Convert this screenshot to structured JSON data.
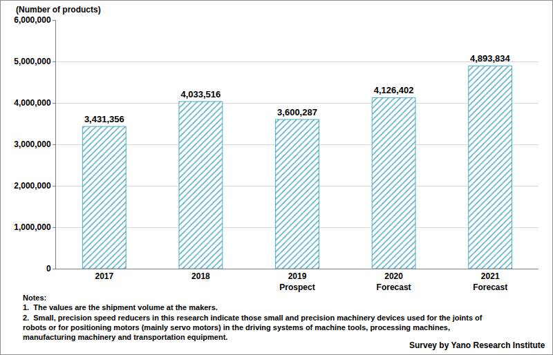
{
  "chart_data": {
    "type": "bar",
    "y_label": "(Number of products)",
    "categories": [
      "2017",
      "2018",
      "2019 Prospect",
      "2020 Forecast",
      "2021 Forecast"
    ],
    "values": [
      3431356,
      4033516,
      3600287,
      4126402,
      4893834
    ],
    "value_labels": [
      "3,431,356",
      "4,033,516",
      "3,600,287",
      "4,126,402",
      "4,893,834"
    ],
    "data_labels": true,
    "color": "#4bacc6",
    "ylim": [
      0,
      6000000
    ],
    "yticks": [
      0,
      {
        "value": 1000000,
        "label": "1,000,000"
      },
      {
        "value": 2000000,
        "label": "2,000,000"
      },
      {
        "value": 3000000,
        "label": "3,000,000"
      },
      {
        "value": 4000000,
        "label": "4,000,000"
      },
      {
        "value": 5000000,
        "label": "5,000,000"
      },
      {
        "value": 6000000,
        "label": "6,000,000"
      }
    ],
    "grid": true,
    "notes": [
      "Notes:",
      "1.  The values are the shipment volume at the makers.",
      "2.  Small, precision speed reducers in this research indicate those small and precision machinery devices used for the joints of",
      "robots or for positioning motors (mainly servo motors) in the driving systems of machine tools, processing machines,",
      "manufacturing machinery and transportation equipment."
    ],
    "source": "Survey by Yano Research Institute"
  }
}
